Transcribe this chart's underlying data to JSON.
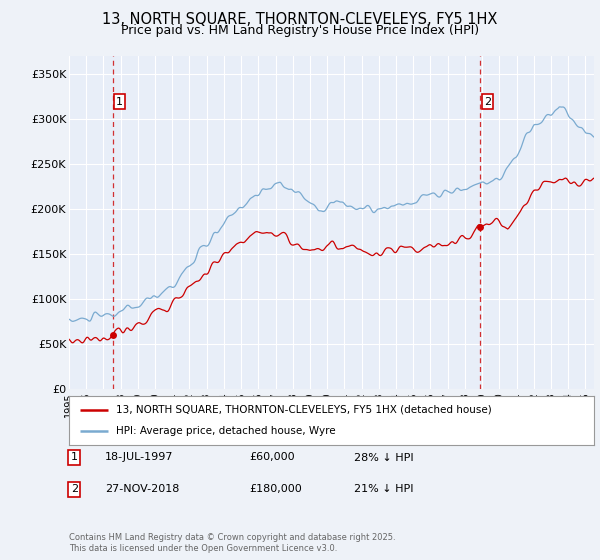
{
  "title": "13, NORTH SQUARE, THORNTON-CLEVELEYS, FY5 1HX",
  "subtitle": "Price paid vs. HM Land Registry's House Price Index (HPI)",
  "legend_line1": "13, NORTH SQUARE, THORNTON-CLEVELEYS, FY5 1HX (detached house)",
  "legend_line2": "HPI: Average price, detached house, Wyre",
  "purchase1_label": "1",
  "purchase1_date": "18-JUL-1997",
  "purchase1_price": "£60,000",
  "purchase1_hpi": "28% ↓ HPI",
  "purchase2_label": "2",
  "purchase2_date": "27-NOV-2018",
  "purchase2_price": "£180,000",
  "purchase2_hpi": "21% ↓ HPI",
  "footer": "Contains HM Land Registry data © Crown copyright and database right 2025.\nThis data is licensed under the Open Government Licence v3.0.",
  "ylim": [
    0,
    370000
  ],
  "xlim_start": 1995.0,
  "xlim_end": 2025.5,
  "purchase1_x": 1997.54,
  "purchase1_y": 60000,
  "purchase2_x": 2018.9,
  "purchase2_y": 180000,
  "bg_color": "#eef2f8",
  "plot_bg_color": "#e8eef8",
  "red_line_color": "#cc0000",
  "blue_line_color": "#7aaad0",
  "grid_color": "#ffffff",
  "dashed_color": "#cc0000",
  "marker_color": "#cc0000",
  "label_box_color": "#cc0000",
  "yticks": [
    0,
    50000,
    100000,
    150000,
    200000,
    250000,
    300000,
    350000
  ],
  "ytick_labels": [
    "£0",
    "£50K",
    "£100K",
    "£150K",
    "£200K",
    "£250K",
    "£300K",
    "£350K"
  ]
}
